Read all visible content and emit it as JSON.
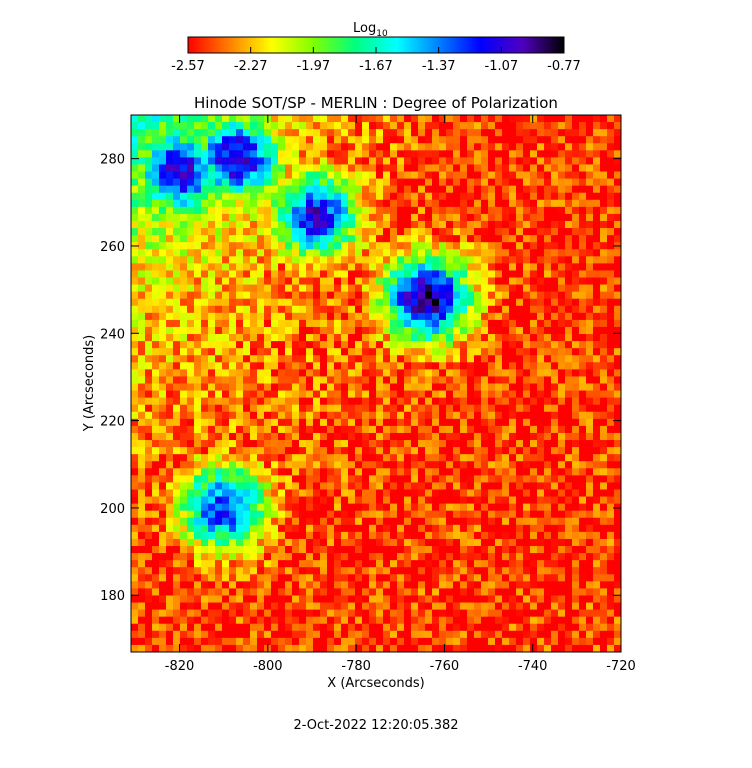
{
  "colorbar": {
    "label_main": "Log",
    "label_sub": "10",
    "ticks": [
      "-2.57",
      "-2.27",
      "-1.97",
      "-1.67",
      "-1.37",
      "-1.07",
      "-0.77"
    ],
    "range": [
      -2.57,
      -0.77
    ],
    "colormap": [
      "#ff0000",
      "#ff8000",
      "#ffff00",
      "#80ff00",
      "#00ff80",
      "#00ffff",
      "#0080ff",
      "#0000ff",
      "#5000c0",
      "#000000"
    ]
  },
  "chart_data": {
    "type": "heatmap",
    "title": "Hinode SOT/SP - MERLIN : Degree of Polarization",
    "xlabel": "X (Arcseconds)",
    "ylabel": "Y (Arcseconds)",
    "xlim": [
      -831,
      -720
    ],
    "ylim": [
      167,
      290
    ],
    "x_ticks": [
      -820,
      -800,
      -780,
      -760,
      -740,
      -720
    ],
    "y_ticks": [
      180,
      200,
      220,
      240,
      260,
      280
    ],
    "x_tick_labels": [
      "-820",
      "-800",
      "-780",
      "-760",
      "-740",
      "-720"
    ],
    "y_tick_labels": [
      "180",
      "200",
      "220",
      "240",
      "260",
      "280"
    ],
    "value_unit": "log10 degree of polarization",
    "value_range": [
      -2.57,
      -0.77
    ],
    "features": [
      {
        "x": -764,
        "y": 248,
        "value": -0.85
      },
      {
        "x": -820,
        "y": 277,
        "value": -1.0
      },
      {
        "x": -807,
        "y": 280,
        "value": -1.0
      },
      {
        "x": -789,
        "y": 267,
        "value": -1.1
      },
      {
        "x": -810,
        "y": 200,
        "value": -1.2
      }
    ]
  },
  "footer": {
    "timestamp": "2-Oct-2022 12:20:05.382"
  }
}
